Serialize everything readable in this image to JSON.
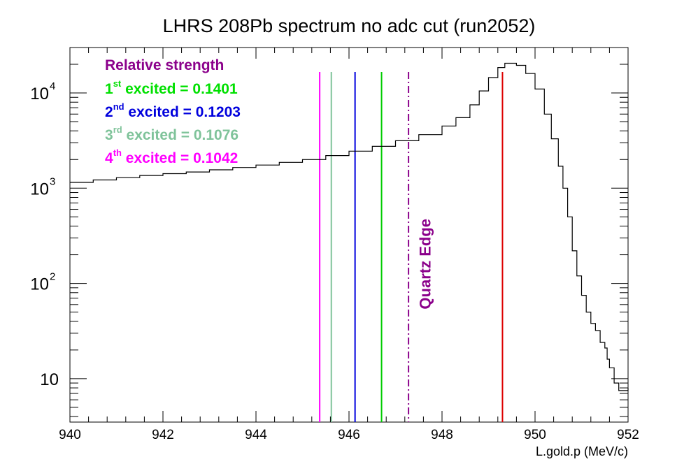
{
  "chart_data": {
    "type": "line",
    "title": "LHRS 208Pb spectrum no adc cut (run2052)",
    "xlabel": "L.gold.p (MeV/c)",
    "ylabel": "",
    "xlim": [
      940,
      952
    ],
    "ylim": [
      3.5,
      30000
    ],
    "y_scale": "log",
    "grid": false,
    "x_ticks": [
      "940",
      "942",
      "944",
      "946",
      "948",
      "950",
      "952"
    ],
    "y_ticks": [
      {
        "value": 10,
        "base": "10",
        "exp": ""
      },
      {
        "value": 100,
        "base": "10",
        "exp": "2"
      },
      {
        "value": 1000,
        "base": "10",
        "exp": "3"
      },
      {
        "value": 10000,
        "base": "10",
        "exp": "4"
      }
    ],
    "series": [
      {
        "kind": "histogram",
        "color": "#000000",
        "x": [
          940.0,
          940.5,
          941.0,
          941.5,
          942.0,
          942.5,
          943.0,
          943.5,
          944.0,
          944.5,
          945.0,
          945.5,
          946.0,
          946.5,
          947.0,
          947.5,
          948.0,
          948.3,
          948.6,
          948.8,
          949.0,
          949.2,
          949.35,
          949.6,
          949.8,
          950.0,
          950.2,
          950.35,
          950.5,
          950.6,
          950.7,
          950.8,
          950.9,
          951.0,
          951.1,
          951.2,
          951.3,
          951.4,
          951.5,
          951.55,
          951.6,
          951.7,
          951.8,
          952.0
        ],
        "y": [
          1150,
          1220,
          1290,
          1360,
          1420,
          1480,
          1560,
          1650,
          1750,
          1870,
          2000,
          2200,
          2450,
          2750,
          3150,
          3650,
          4500,
          5500,
          7500,
          10500,
          14500,
          18500,
          20500,
          19500,
          16000,
          11000,
          6000,
          3300,
          1700,
          1000,
          500,
          220,
          120,
          75,
          50,
          38,
          32,
          24,
          21,
          16,
          13,
          9,
          7.5,
          8
        ]
      }
    ],
    "vertical_lines": [
      {
        "x": 945.37,
        "color": "#ff00ff",
        "style": "solid"
      },
      {
        "x": 945.62,
        "color": "#7fc39a",
        "style": "solid"
      },
      {
        "x": 946.13,
        "color": "#0000dd",
        "style": "solid"
      },
      {
        "x": 946.7,
        "color": "#00cc00",
        "style": "solid"
      },
      {
        "x": 947.28,
        "color": "#8b008b",
        "style": "dashdot"
      },
      {
        "x": 949.3,
        "color": "#dd0000",
        "style": "solid"
      }
    ],
    "legend": {
      "placement": "top-left",
      "header": {
        "text": "Relative strength",
        "color": "#8b008b"
      },
      "entries": [
        {
          "num": "1",
          "sup": "st",
          "text": " excited = 0.1401",
          "color": "#00e000"
        },
        {
          "num": "2",
          "sup": "nd",
          "text": " excited = 0.1203",
          "color": "#0000dd"
        },
        {
          "num": "3",
          "sup": "rd",
          "text": " excited = 0.1076",
          "color": "#7fc39a"
        },
        {
          "num": "4",
          "sup": "th",
          "text": " excited = 0.1042",
          "color": "#ff00ff"
        }
      ]
    },
    "annotations": [
      {
        "text": "Quartz Edge",
        "color": "#8b008b",
        "x": 947.75,
        "y": 160,
        "rotation": -90
      }
    ]
  }
}
